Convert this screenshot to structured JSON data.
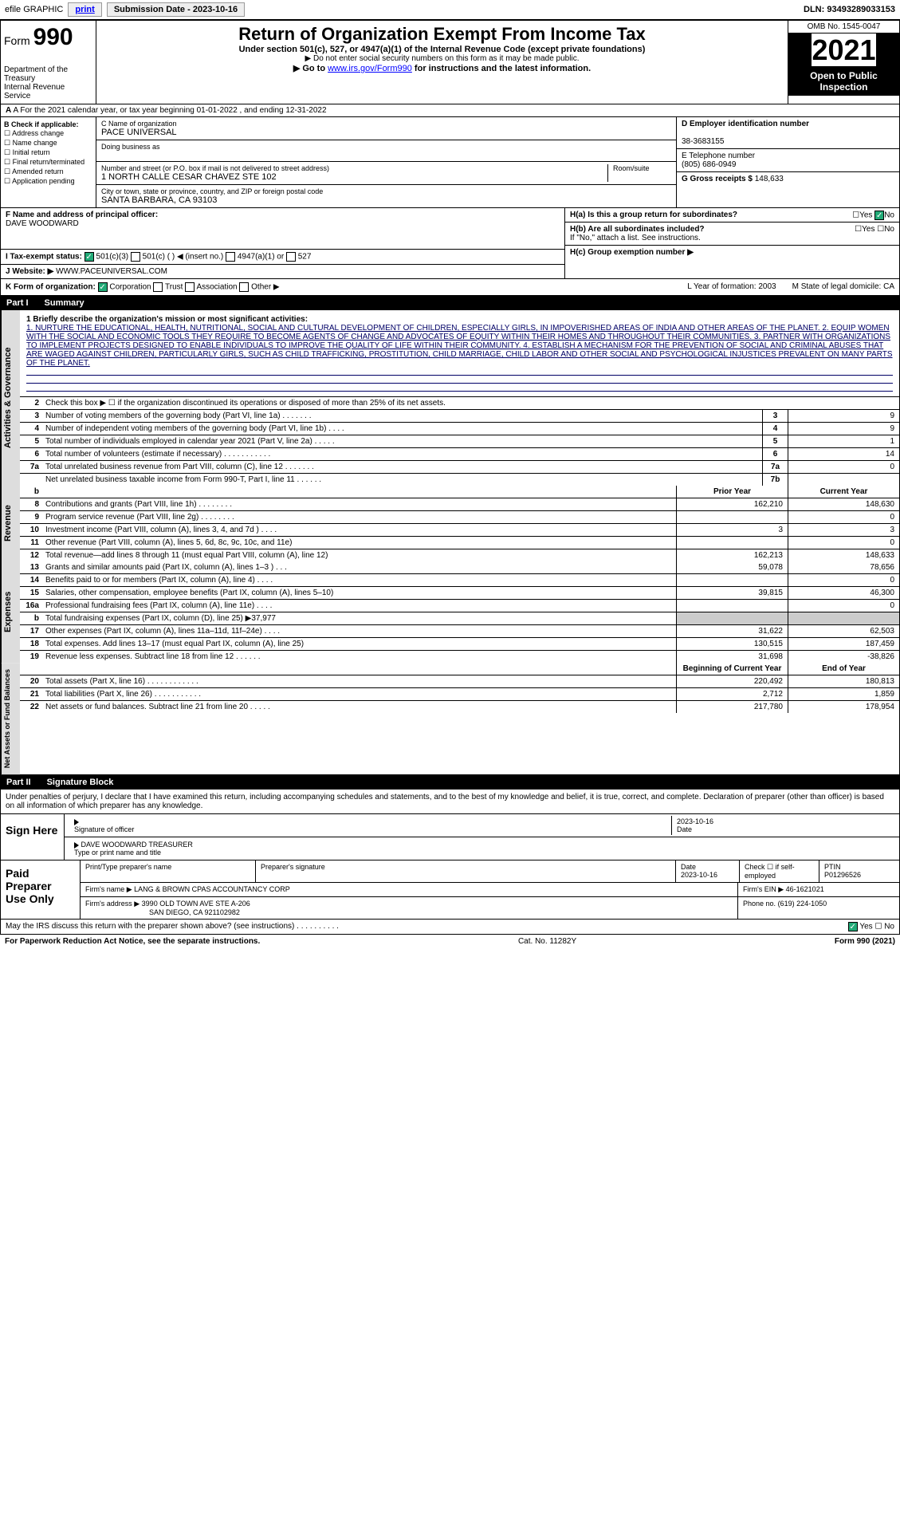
{
  "top": {
    "efile": "efile GRAPHIC",
    "print": "print",
    "sub_label": "Submission Date - ",
    "sub_date": "2023-10-16",
    "dln": "DLN: 93493289033153"
  },
  "header": {
    "form": "Form",
    "form_num": "990",
    "dept": "Department of the Treasury",
    "irs": "Internal Revenue Service",
    "title": "Return of Organization Exempt From Income Tax",
    "sub": "Under section 501(c), 527, or 4947(a)(1) of the Internal Revenue Code (except private foundations)",
    "note": "▶ Do not enter social security numbers on this form as it may be made public.",
    "goto_pre": "▶ Go to ",
    "goto_link": "www.irs.gov/Form990",
    "goto_post": " for instructions and the latest information.",
    "omb": "OMB No. 1545-0047",
    "year": "2021",
    "open": "Open to Public Inspection"
  },
  "row_a": "A For the 2021 calendar year, or tax year beginning 01-01-2022   , and ending 12-31-2022",
  "col_b": {
    "hdr": "B Check if applicable:",
    "items": [
      "Address change",
      "Name change",
      "Initial return",
      "Final return/terminated",
      "Amended return",
      "Application pending"
    ]
  },
  "col_c": {
    "name_lbl": "C Name of organization",
    "name": "PACE UNIVERSAL",
    "dba_lbl": "Doing business as",
    "addr_lbl": "Number and street (or P.O. box if mail is not delivered to street address)",
    "room_lbl": "Room/suite",
    "addr": "1 NORTH CALLE CESAR CHAVEZ STE 102",
    "city_lbl": "City or town, state or province, country, and ZIP or foreign postal code",
    "city": "SANTA BARBARA, CA  93103"
  },
  "col_d": {
    "ein_lbl": "D Employer identification number",
    "ein": "38-3683155",
    "tel_lbl": "E Telephone number",
    "tel": "(805) 686-0949",
    "gross_lbl": "G Gross receipts $",
    "gross": "148,633"
  },
  "lower": {
    "f_lbl": "F  Name and address of principal officer:",
    "f_name": "DAVE WOODWARD",
    "ha": "H(a)  Is this a group return for subordinates?",
    "hb": "H(b)  Are all subordinates included?",
    "hb_note": "If \"No,\" attach a list. See instructions.",
    "hc": "H(c)  Group exemption number ▶",
    "yes": "Yes",
    "no": "No",
    "i": "I   Tax-exempt status:",
    "i_opts": [
      "501(c)(3)",
      "501(c) (  ) ◀ (insert no.)",
      "4947(a)(1) or",
      "527"
    ],
    "j": "J   Website: ▶",
    "j_val": "WWW.PACEUNIVERSAL.COM"
  },
  "row_k": {
    "k": "K Form of organization:",
    "opts": [
      "Corporation",
      "Trust",
      "Association",
      "Other ▶"
    ],
    "l": "L Year of formation: 2003",
    "m": "M State of legal domicile: CA"
  },
  "part1": {
    "num": "Part I",
    "title": "Summary"
  },
  "mission_lbl": "1   Briefly describe the organization's mission or most significant activities:",
  "mission": "1. NURTURE THE EDUCATIONAL, HEALTH, NUTRITIONAL, SOCIAL AND CULTURAL DEVELOPMENT OF CHILDREN, ESPECIALLY GIRLS, IN IMPOVERISHED AREAS OF INDIA AND OTHER AREAS OF THE PLANET. 2. EQUIP WOMEN WITH THE SOCIAL AND ECONOMIC TOOLS THEY REQUIRE TO BECOME AGENTS OF CHANGE AND ADVOCATES OF EQUITY WITHIN THEIR HOMES AND THROUGHOUT THEIR COMMUNITIES. 3. PARTNER WITH ORGANIZATIONS TO IMPLEMENT PROJECTS DESIGNED TO ENABLE INDIVIDUALS TO IMPROVE THE QUALITY OF LIFE WITHIN THEIR COMMUNITY. 4. ESTABLISH A MECHANISM FOR THE PREVENTION OF SOCIAL AND CRIMINAL ABUSES THAT ARE WAGED AGAINST CHILDREN, PARTICULARLY GIRLS, SUCH AS CHILD TRAFFICKING, PROSTITUTION, CHILD MARRIAGE, CHILD LABOR AND OTHER SOCIAL AND PSYCHOLOGICAL INJUSTICES PREVALENT ON MANY PARTS OF THE PLANET.",
  "line2": "Check this box ▶ ☐ if the organization discontinued its operations or disposed of more than 25% of its net assets.",
  "gov_lines": [
    {
      "n": "3",
      "d": "Number of voting members of the governing body (Part VI, line 1a)   .    .    .    .    .    .    .",
      "b": "3",
      "v": "9"
    },
    {
      "n": "4",
      "d": "Number of independent voting members of the governing body (Part VI, line 1b)   .    .    .    .",
      "b": "4",
      "v": "9"
    },
    {
      "n": "5",
      "d": "Total number of individuals employed in calendar year 2021 (Part V, line 2a)   .    .    .    .    .",
      "b": "5",
      "v": "1"
    },
    {
      "n": "6",
      "d": "Total number of volunteers (estimate if necessary)  .    .    .    .    .    .    .    .    .    .    .",
      "b": "6",
      "v": "14"
    },
    {
      "n": "7a",
      "d": "Total unrelated business revenue from Part VIII, column (C), line 12  .    .    .    .    .    .    .",
      "b": "7a",
      "v": "0"
    },
    {
      "n": "",
      "d": "Net unrelated business taxable income from Form 990-T, Part I, line 11  .    .    .    .    .    .",
      "b": "7b",
      "v": ""
    }
  ],
  "hdr_prior": "Prior Year",
  "hdr_curr": "Current Year",
  "rev_lines": [
    {
      "n": "8",
      "d": "Contributions and grants (Part VIII, line 1h)   .    .    .    .    .    .    .    .",
      "p": "162,210",
      "c": "148,630"
    },
    {
      "n": "9",
      "d": "Program service revenue (Part VIII, line 2g)   .    .    .    .    .    .    .    .",
      "p": "",
      "c": "0"
    },
    {
      "n": "10",
      "d": "Investment income (Part VIII, column (A), lines 3, 4, and 7d )   .    .    .    .",
      "p": "3",
      "c": "3"
    },
    {
      "n": "11",
      "d": "Other revenue (Part VIII, column (A), lines 5, 6d, 8c, 9c, 10c, and 11e)",
      "p": "",
      "c": "0"
    },
    {
      "n": "12",
      "d": "Total revenue—add lines 8 through 11 (must equal Part VIII, column (A), line 12)",
      "p": "162,213",
      "c": "148,633"
    }
  ],
  "exp_lines": [
    {
      "n": "13",
      "d": "Grants and similar amounts paid (Part IX, column (A), lines 1–3 )   .    .    .",
      "p": "59,078",
      "c": "78,656"
    },
    {
      "n": "14",
      "d": "Benefits paid to or for members (Part IX, column (A), line 4)   .    .    .    .",
      "p": "",
      "c": "0"
    },
    {
      "n": "15",
      "d": "Salaries, other compensation, employee benefits (Part IX, column (A), lines 5–10)",
      "p": "39,815",
      "c": "46,300"
    },
    {
      "n": "16a",
      "d": "Professional fundraising fees (Part IX, column (A), line 11e)   .    .    .    .",
      "p": "",
      "c": "0"
    },
    {
      "n": "b",
      "d": "Total fundraising expenses (Part IX, column (D), line 25) ▶37,977",
      "p": "shade",
      "c": "shade"
    },
    {
      "n": "17",
      "d": "Other expenses (Part IX, column (A), lines 11a–11d, 11f–24e)   .    .    .    .",
      "p": "31,622",
      "c": "62,503"
    },
    {
      "n": "18",
      "d": "Total expenses. Add lines 13–17 (must equal Part IX, column (A), line 25)",
      "p": "130,515",
      "c": "187,459"
    },
    {
      "n": "19",
      "d": "Revenue less expenses. Subtract line 18 from line 12  .    .    .    .    .    .",
      "p": "31,698",
      "c": "-38,826"
    }
  ],
  "hdr_beg": "Beginning of Current Year",
  "hdr_end": "End of Year",
  "net_lines": [
    {
      "n": "20",
      "d": "Total assets (Part X, line 16)  .    .    .    .    .    .    .    .    .    .    .    .",
      "p": "220,492",
      "c": "180,813"
    },
    {
      "n": "21",
      "d": "Total liabilities (Part X, line 26)  .    .    .    .    .    .    .    .    .    .    .",
      "p": "2,712",
      "c": "1,859"
    },
    {
      "n": "22",
      "d": "Net assets or fund balances. Subtract line 21 from line 20  .    .    .    .    .",
      "p": "217,780",
      "c": "178,954"
    }
  ],
  "side_labels": [
    "Activities & Governance",
    "Revenue",
    "Expenses",
    "Net Assets or Fund Balances"
  ],
  "part2": {
    "num": "Part II",
    "title": "Signature Block"
  },
  "sig_text": "Under penalties of perjury, I declare that I have examined this return, including accompanying schedules and statements, and to the best of my knowledge and belief, it is true, correct, and complete. Declaration of preparer (other than officer) is based on all information of which preparer has any knowledge.",
  "sign_here": "Sign Here",
  "sig_officer": "Signature of officer",
  "sig_date": "2023-10-16",
  "sig_date_lbl": "Date",
  "sig_name": "DAVE WOODWARD  TREASURER",
  "sig_name_lbl": "Type or print name and title",
  "paid_prep": "Paid Preparer Use Only",
  "prep": {
    "name_lbl": "Print/Type preparer's name",
    "sig_lbl": "Preparer's signature",
    "date_lbl": "Date",
    "date": "2023-10-16",
    "check_lbl": "Check ☐ if self-employed",
    "ptin_lbl": "PTIN",
    "ptin": "P01296526",
    "firm_lbl": "Firm's name    ▶",
    "firm": "LANG & BROWN CPAS ACCOUNTANCY CORP",
    "ein_lbl": "Firm's EIN ▶",
    "ein": "46-1621021",
    "addr_lbl": "Firm's address ▶",
    "addr1": "3990 OLD TOWN AVE STE A-206",
    "addr2": "SAN DIEGO, CA  921102982",
    "phone_lbl": "Phone no.",
    "phone": "(619) 224-1050"
  },
  "discuss": "May the IRS discuss this return with the preparer shown above? (see instructions)   .    .    .    .    .    .    .    .    .    .",
  "bottom": {
    "pra": "For Paperwork Reduction Act Notice, see the separate instructions.",
    "cat": "Cat. No. 11282Y",
    "form": "Form 990 (2021)"
  }
}
